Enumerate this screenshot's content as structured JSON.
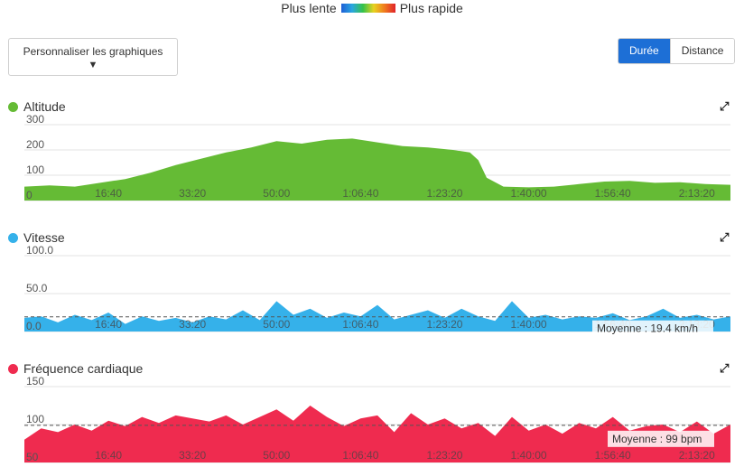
{
  "legend": {
    "slow": "Plus lente",
    "fast": "Plus rapide"
  },
  "customize_label": "Personnaliser les graphiques",
  "caret": "▼",
  "toggle": {
    "duration": "Durée",
    "distance": "Distance"
  },
  "expand_icon": "⤢",
  "x_ticks": [
    "16:40",
    "33:20",
    "50:00",
    "1:06:40",
    "1:23:20",
    "1:40:00",
    "1:56:40",
    "2:13:20"
  ],
  "colors": {
    "altitude": "#65bb35",
    "speed": "#35b1ea",
    "heart": "#ef2b4f",
    "toggle_active": "#1d6fd6"
  },
  "chart_data": [
    {
      "type": "area",
      "title": "Altitude",
      "xlabel": "",
      "ylabel": "",
      "yticks": [
        "0",
        "100",
        "200",
        "300"
      ],
      "ylim": [
        0,
        300
      ],
      "xlim": [
        0,
        8400
      ],
      "x": [
        0,
        300,
        600,
        900,
        1200,
        1500,
        1800,
        2100,
        2400,
        2700,
        3000,
        3300,
        3600,
        3900,
        4200,
        4500,
        4800,
        5100,
        5300,
        5400,
        5500,
        5700,
        6000,
        6300,
        6600,
        6900,
        7200,
        7500,
        7800,
        8100,
        8400
      ],
      "values": [
        55,
        60,
        55,
        70,
        85,
        110,
        140,
        165,
        190,
        210,
        235,
        225,
        240,
        245,
        230,
        215,
        210,
        200,
        190,
        160,
        90,
        55,
        52,
        55,
        65,
        75,
        78,
        70,
        72,
        65,
        62
      ],
      "grid": true
    },
    {
      "type": "area",
      "title": "Vitesse",
      "xlabel": "",
      "ylabel": "",
      "yticks": [
        "0.0",
        "50.0",
        "100.0"
      ],
      "ylim": [
        0,
        100
      ],
      "xlim": [
        0,
        8400
      ],
      "x": [
        0,
        200,
        400,
        600,
        800,
        1000,
        1200,
        1400,
        1600,
        1800,
        2000,
        2200,
        2400,
        2600,
        2800,
        3000,
        3200,
        3400,
        3600,
        3800,
        4000,
        4200,
        4400,
        4600,
        4800,
        5000,
        5200,
        5400,
        5600,
        5800,
        6000,
        6200,
        6400,
        6600,
        6800,
        7000,
        7200,
        7400,
        7600,
        7800,
        8000,
        8200,
        8400
      ],
      "values": [
        18,
        20,
        12,
        22,
        15,
        25,
        10,
        20,
        14,
        18,
        12,
        20,
        16,
        28,
        15,
        40,
        22,
        30,
        18,
        25,
        20,
        35,
        16,
        22,
        28,
        18,
        30,
        20,
        14,
        40,
        18,
        22,
        16,
        20,
        18,
        24,
        15,
        20,
        30,
        18,
        22,
        16,
        20
      ],
      "average_label": "Moyenne : 19.4 km/h",
      "average": 19.4,
      "grid": true
    },
    {
      "type": "area",
      "title": "Fréquence cardiaque",
      "xlabel": "",
      "ylabel": "",
      "yticks": [
        "50",
        "100",
        "150"
      ],
      "ylim": [
        50,
        150
      ],
      "xlim": [
        0,
        8400
      ],
      "x": [
        0,
        200,
        400,
        600,
        800,
        1000,
        1200,
        1400,
        1600,
        1800,
        2000,
        2200,
        2400,
        2600,
        2800,
        3000,
        3200,
        3400,
        3600,
        3800,
        4000,
        4200,
        4400,
        4600,
        4800,
        5000,
        5200,
        5400,
        5600,
        5800,
        6000,
        6200,
        6400,
        6600,
        6800,
        7000,
        7200,
        7400,
        7600,
        7800,
        8000,
        8200,
        8400
      ],
      "values": [
        80,
        95,
        90,
        100,
        92,
        105,
        98,
        110,
        102,
        112,
        108,
        104,
        112,
        100,
        110,
        120,
        105,
        125,
        110,
        98,
        108,
        112,
        90,
        115,
        100,
        108,
        95,
        102,
        85,
        110,
        92,
        100,
        88,
        102,
        95,
        110,
        92,
        98,
        100,
        90,
        104,
        88,
        100
      ],
      "average_label": "Moyenne : 99 bpm",
      "average": 99,
      "grid": true
    }
  ]
}
